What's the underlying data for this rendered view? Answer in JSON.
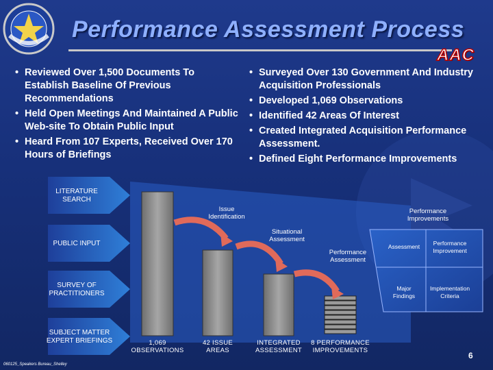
{
  "title": "Performance Assessment Process",
  "logo_text": "AAC",
  "emblem_text": "AIR ARMAMENT CENTER",
  "left_bullets": [
    "Reviewed Over 1,500 Documents To Establish Baseline Of Previous Recommendations",
    "Held Open Meetings And Maintained A Public Web-site To Obtain Public Input",
    "Heard From 107 Experts, Received Over 170 Hours of Briefings"
  ],
  "right_bullets": [
    "Surveyed Over 130 Government And Industry Acquisition Professionals",
    "Developed 1,069 Observations",
    "Identified 42 Areas Of Interest",
    "Created Integrated Acquisition Performance Assessment.",
    "Defined Eight Performance Improvements"
  ],
  "inputs": [
    "LITERATURE SEARCH",
    "PUBLIC INPUT",
    "SURVEY OF PRACTITIONERS",
    "SUBJECT MATTER EXPERT BRIEFINGS"
  ],
  "flow_labels": {
    "issue_identification": "Issue Identification",
    "situational_assessment": "Situational Assessment",
    "performance_assessment": "Performance Assessment",
    "performance_improvements": "Performance Improvements"
  },
  "matrix": {
    "assessment": "Assessment",
    "performance_improvement": "Performance Improvement",
    "major_findings": "Major Findings",
    "implementation_criteria": "Implementation Criteria"
  },
  "columns": [
    "1,069 OBSERVATIONS",
    "42 ISSUE AREAS",
    "INTEGRATED ASSESSMENT",
    "8 PERFORMANCE IMPROVEMENTS"
  ],
  "page_number": "6",
  "footer": "060125_Speakers Bureau_Shelley",
  "colors": {
    "background": "#1a3580",
    "title": "#8fb0ff",
    "arrow_gradient_start": "#1e3f9a",
    "arrow_gradient_end": "#2f7fd8",
    "curve_arrow": "#e06a5a",
    "bar": "#8f8f8f"
  }
}
